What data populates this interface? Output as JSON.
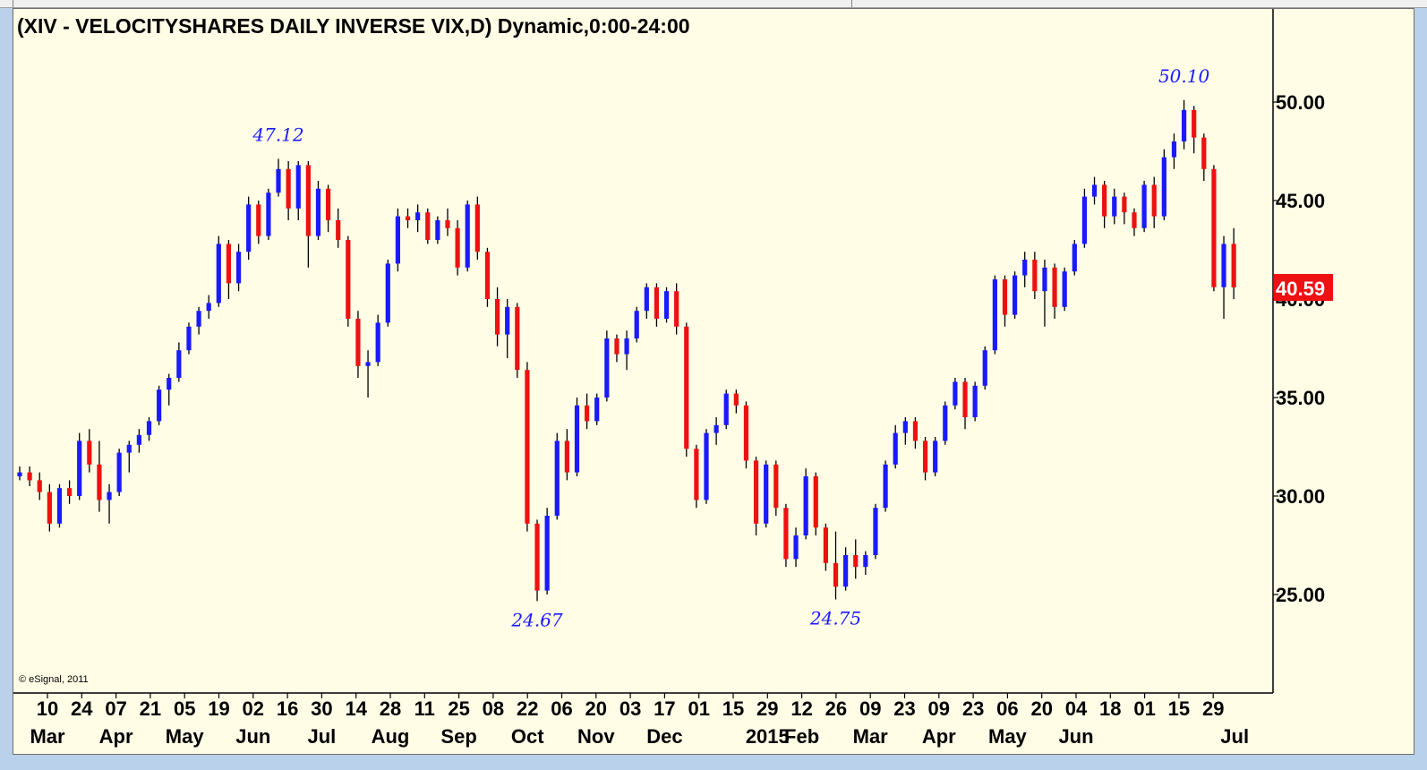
{
  "window": {
    "title": "(XIV - VELOCITYSHARES DAILY INVERSE VIX,D) Dynamic,0:00-24:00"
  },
  "copyright": "© eSignal, 2011",
  "colors": {
    "background": "#fffde6",
    "up": "#1a1aff",
    "down": "#ee1111",
    "frame": "#b9d1ea"
  },
  "chart_data": {
    "type": "candlestick",
    "title": "(XIV - VELOCITYSHARES DAILY INVERSE VIX,D) Dynamic,0:00-24:00",
    "ylim": [
      20.0,
      54.0
    ],
    "y_ticks": [
      "25.00",
      "30.00",
      "35.00",
      "40.00",
      "45.00",
      "50.00"
    ],
    "last_value": "40.59",
    "x_day_ticks": [
      "10",
      "24",
      "07",
      "21",
      "05",
      "19",
      "02",
      "16",
      "30",
      "14",
      "28",
      "11",
      "25",
      "08",
      "22",
      "06",
      "20",
      "03",
      "17",
      "01",
      "15",
      "29",
      "12",
      "26",
      "09",
      "23",
      "09",
      "23",
      "06",
      "20",
      "04",
      "18",
      "01",
      "15",
      "29"
    ],
    "x_month_ticks": [
      "Mar",
      "Apr",
      "May",
      "Jun",
      "Jul",
      "Aug",
      "Sep",
      "Oct",
      "Nov",
      "Dec",
      "2015",
      "Feb",
      "Mar",
      "Apr",
      "May",
      "Jun",
      "Jul"
    ],
    "annotations": [
      "47.12",
      "24.67",
      "24.75",
      "50.10"
    ],
    "series": [
      {
        "values": [
          [
            0,
            31,
            31.5,
            30.8,
            31.2
          ],
          [
            2,
            31.2,
            31.5,
            30.5,
            30.8
          ],
          [
            4,
            30.8,
            31.2,
            29.8,
            30.2
          ],
          [
            6,
            30.2,
            30.6,
            28.2,
            28.6
          ],
          [
            8,
            28.6,
            30.6,
            28.4,
            30.4
          ],
          [
            10,
            30.4,
            30.8,
            29.6,
            30.0
          ],
          [
            12,
            30,
            33.2,
            29.8,
            32.8
          ],
          [
            14,
            32.8,
            33.4,
            31.2,
            31.6
          ],
          [
            16,
            31.6,
            32.8,
            29.2,
            29.8
          ],
          [
            18,
            29.8,
            30.6,
            28.6,
            30.2
          ],
          [
            20,
            30.2,
            32.4,
            30,
            32.2
          ],
          [
            22,
            32.2,
            32.8,
            31.2,
            32.6
          ],
          [
            24,
            32.6,
            33.4,
            32.2,
            33.1
          ],
          [
            26,
            33.1,
            34,
            32.8,
            33.8
          ],
          [
            28,
            33.8,
            35.6,
            33.6,
            35.4
          ],
          [
            30,
            35.4,
            36.2,
            34.6,
            36.0
          ],
          [
            32,
            36.0,
            37.8,
            35.8,
            37.4
          ],
          [
            34,
            37.4,
            38.8,
            37.2,
            38.6
          ],
          [
            36,
            38.6,
            39.6,
            38.2,
            39.4
          ],
          [
            38,
            39.4,
            40.2,
            39.0,
            39.8
          ],
          [
            40,
            39.8,
            43.2,
            39.6,
            42.8
          ],
          [
            42,
            42.8,
            43.0,
            40.0,
            40.8
          ],
          [
            44,
            40.8,
            42.8,
            40.4,
            42.4
          ],
          [
            46,
            42.4,
            45.2,
            42.0,
            44.8
          ],
          [
            48,
            44.8,
            45.0,
            42.8,
            43.2
          ],
          [
            50,
            43.2,
            45.6,
            43.0,
            45.4
          ],
          [
            52,
            45.4,
            47.12,
            45.2,
            46.6
          ],
          [
            54,
            46.6,
            47.0,
            44.0,
            44.6
          ],
          [
            56,
            44.6,
            47.0,
            44.0,
            46.8
          ],
          [
            58,
            46.8,
            47.0,
            41.6,
            43.2
          ],
          [
            60,
            43.2,
            46.0,
            43.0,
            45.6
          ],
          [
            62,
            45.6,
            45.8,
            43.4,
            44.0
          ],
          [
            64,
            44.0,
            44.6,
            42.6,
            43.0
          ],
          [
            66,
            43.0,
            43.2,
            38.6,
            39.0
          ],
          [
            68,
            39.0,
            39.4,
            36.0,
            36.6
          ],
          [
            70,
            36.6,
            37.4,
            35.0,
            36.8
          ],
          [
            72,
            36.8,
            39.2,
            36.6,
            38.8
          ],
          [
            74,
            38.8,
            42.0,
            38.6,
            41.8
          ],
          [
            76,
            41.8,
            44.6,
            41.4,
            44.2
          ],
          [
            78,
            44.2,
            44.6,
            43.6,
            44.0
          ],
          [
            80,
            44.0,
            44.8,
            43.4,
            44.4
          ],
          [
            82,
            44.4,
            44.6,
            42.8,
            43.0
          ],
          [
            84,
            43.0,
            44.2,
            42.8,
            44.0
          ],
          [
            86,
            44.0,
            44.6,
            43.2,
            43.6
          ],
          [
            88,
            43.6,
            44.0,
            41.2,
            41.6
          ],
          [
            90,
            41.6,
            45.0,
            41.4,
            44.8
          ],
          [
            92,
            44.8,
            45.2,
            42.0,
            42.4
          ],
          [
            94,
            42.4,
            42.6,
            39.6,
            40.0
          ],
          [
            96,
            40.0,
            40.6,
            37.6,
            38.2
          ],
          [
            98,
            38.2,
            40.0,
            37.0,
            39.6
          ],
          [
            100,
            39.6,
            39.8,
            36.0,
            36.4
          ],
          [
            102,
            36.4,
            36.8,
            28.2,
            28.6
          ],
          [
            104,
            28.6,
            28.8,
            24.67,
            25.2
          ],
          [
            106,
            25.2,
            29.4,
            25.0,
            29.0
          ],
          [
            108,
            29.0,
            33.2,
            28.8,
            32.8
          ],
          [
            110,
            32.8,
            33.4,
            30.8,
            31.2
          ],
          [
            112,
            31.2,
            35.0,
            31.0,
            34.6
          ],
          [
            114,
            34.6,
            35.2,
            33.4,
            33.8
          ],
          [
            116,
            33.8,
            35.2,
            33.6,
            35.0
          ],
          [
            118,
            35.0,
            38.4,
            34.8,
            38.0
          ],
          [
            120,
            38.0,
            38.2,
            36.8,
            37.2
          ],
          [
            122,
            37.2,
            38.4,
            36.4,
            38.0
          ],
          [
            124,
            38.0,
            39.6,
            37.8,
            39.4
          ],
          [
            126,
            39.4,
            40.8,
            39.0,
            40.6
          ],
          [
            128,
            40.6,
            40.8,
            38.6,
            39.0
          ],
          [
            130,
            39.0,
            40.6,
            38.8,
            40.4
          ],
          [
            132,
            40.4,
            40.8,
            38.2,
            38.6
          ],
          [
            134,
            38.6,
            38.8,
            32.0,
            32.4
          ],
          [
            136,
            32.4,
            32.6,
            29.4,
            29.8
          ],
          [
            138,
            29.8,
            33.4,
            29.6,
            33.2
          ],
          [
            140,
            33.2,
            34.0,
            32.6,
            33.6
          ],
          [
            142,
            33.6,
            35.4,
            33.4,
            35.2
          ],
          [
            144,
            35.2,
            35.4,
            34.2,
            34.6
          ],
          [
            146,
            34.6,
            34.8,
            31.4,
            31.8
          ],
          [
            148,
            31.8,
            32.0,
            28.0,
            28.6
          ],
          [
            150,
            28.6,
            31.8,
            28.4,
            31.6
          ],
          [
            152,
            31.6,
            31.8,
            29.0,
            29.4
          ],
          [
            154,
            29.4,
            29.6,
            26.4,
            26.8
          ],
          [
            156,
            26.8,
            28.4,
            26.4,
            28.0
          ],
          [
            158,
            28.0,
            31.4,
            27.8,
            31.0
          ],
          [
            160,
            31.0,
            31.2,
            28.0,
            28.4
          ],
          [
            162,
            28.4,
            28.6,
            26.2,
            26.6
          ],
          [
            164,
            26.6,
            28.2,
            24.75,
            25.4
          ],
          [
            166,
            25.4,
            27.4,
            25.2,
            27.0
          ],
          [
            168,
            27.0,
            27.8,
            25.8,
            26.4
          ],
          [
            170,
            26.4,
            27.2,
            26.0,
            27.0
          ],
          [
            172,
            27.0,
            29.6,
            26.8,
            29.4
          ],
          [
            174,
            29.4,
            31.8,
            29.2,
            31.6
          ],
          [
            176,
            31.6,
            33.6,
            31.4,
            33.2
          ],
          [
            178,
            33.2,
            34.0,
            32.6,
            33.8
          ],
          [
            180,
            33.8,
            34.0,
            32.4,
            32.8
          ],
          [
            182,
            32.8,
            33.0,
            30.8,
            31.2
          ],
          [
            184,
            31.2,
            33.0,
            31.0,
            32.8
          ],
          [
            186,
            32.8,
            34.8,
            32.6,
            34.6
          ],
          [
            188,
            34.6,
            36.0,
            34.4,
            35.8
          ],
          [
            190,
            35.8,
            36.0,
            33.4,
            34.0
          ],
          [
            192,
            34.0,
            35.8,
            33.8,
            35.6
          ],
          [
            194,
            35.6,
            37.6,
            35.4,
            37.4
          ],
          [
            196,
            37.4,
            41.2,
            37.2,
            41.0
          ],
          [
            198,
            41.0,
            41.2,
            38.6,
            39.2
          ],
          [
            200,
            39.2,
            41.4,
            39.0,
            41.2
          ],
          [
            202,
            41.2,
            42.4,
            40.6,
            42.0
          ],
          [
            204,
            42.0,
            42.4,
            40.0,
            40.4
          ],
          [
            206,
            40.4,
            42.0,
            38.6,
            41.6
          ],
          [
            208,
            41.6,
            41.8,
            39.0,
            39.6
          ],
          [
            210,
            39.6,
            41.6,
            39.4,
            41.4
          ],
          [
            212,
            41.4,
            43.0,
            41.2,
            42.8
          ],
          [
            214,
            42.8,
            45.6,
            42.6,
            45.2
          ],
          [
            216,
            45.2,
            46.2,
            44.8,
            45.8
          ],
          [
            218,
            45.8,
            46.0,
            43.6,
            44.2
          ],
          [
            220,
            44.2,
            45.6,
            43.8,
            45.2
          ],
          [
            222,
            45.2,
            45.4,
            43.8,
            44.4
          ],
          [
            224,
            44.4,
            44.6,
            43.2,
            43.6
          ],
          [
            226,
            43.6,
            46.0,
            43.4,
            45.8
          ],
          [
            228,
            45.8,
            46.2,
            43.6,
            44.2
          ],
          [
            230,
            44.2,
            47.6,
            44.0,
            47.2
          ],
          [
            232,
            47.2,
            48.4,
            46.6,
            48.0
          ],
          [
            234,
            48.0,
            50.1,
            47.6,
            49.6
          ],
          [
            236,
            49.6,
            49.8,
            47.4,
            48.2
          ],
          [
            238,
            48.2,
            48.4,
            46.0,
            46.6
          ],
          [
            240,
            46.6,
            46.8,
            40.4,
            40.6
          ],
          [
            242,
            40.6,
            43.2,
            39.0,
            42.8
          ],
          [
            244,
            42.8,
            43.6,
            40.0,
            40.59
          ]
        ]
      }
    ]
  }
}
